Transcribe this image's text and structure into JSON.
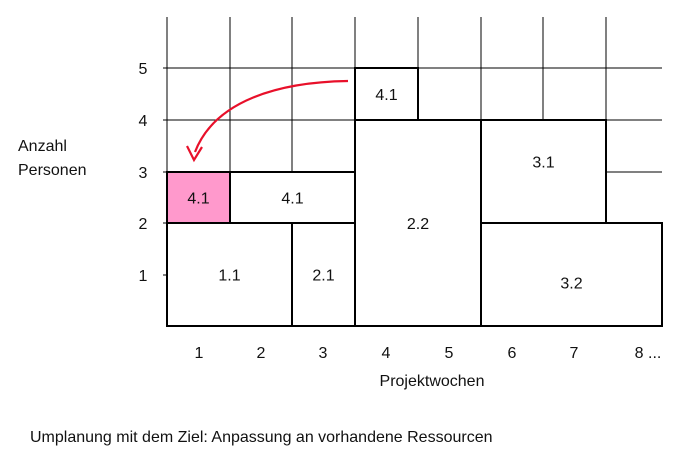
{
  "y_axis": {
    "label_line1": "Anzahl",
    "label_line2": "Personen",
    "ticks": [
      "1",
      "2",
      "3",
      "4",
      "5"
    ]
  },
  "x_axis": {
    "label": "Projektwochen",
    "ticks": [
      "1",
      "2",
      "3",
      "4",
      "5",
      "6",
      "7",
      "8 ..."
    ]
  },
  "blocks": [
    {
      "label": "1.1",
      "week_start": 1,
      "week_end": 2,
      "persons_from": 0,
      "persons_to": 2,
      "highlight": false
    },
    {
      "label": "2.1",
      "week_start": 3,
      "week_end": 3,
      "persons_from": 0,
      "persons_to": 2,
      "highlight": false
    },
    {
      "label": "4.1",
      "week_start": 1,
      "week_end": 1,
      "persons_from": 2,
      "persons_to": 3,
      "highlight": true
    },
    {
      "label": "4.1",
      "week_start": 2,
      "week_end": 3,
      "persons_from": 2,
      "persons_to": 3,
      "highlight": false
    },
    {
      "label": "2.2",
      "week_start": 4,
      "week_end": 5,
      "persons_from": 0,
      "persons_to": 4,
      "highlight": false
    },
    {
      "label": "4.1",
      "week_start": 4,
      "week_end": 4,
      "persons_from": 4,
      "persons_to": 5,
      "highlight": false
    },
    {
      "label": "3.1",
      "week_start": 6,
      "week_end": 7,
      "persons_from": 2,
      "persons_to": 4,
      "highlight": false
    },
    {
      "label": "3.2",
      "week_start": 6,
      "week_end": 8,
      "persons_from": 0,
      "persons_to": 2,
      "highlight": false
    }
  ],
  "arrow": {
    "from": "4.1 (week 4, persons 4-5)",
    "to": "4.1 (week 1, persons 2-3)"
  },
  "colors": {
    "highlight": "#ff99cc",
    "arrow": "#e8102a",
    "grid": "#000000"
  },
  "caption": "Umplanung mit dem Ziel: Anpassung an vorhandene Ressourcen"
}
